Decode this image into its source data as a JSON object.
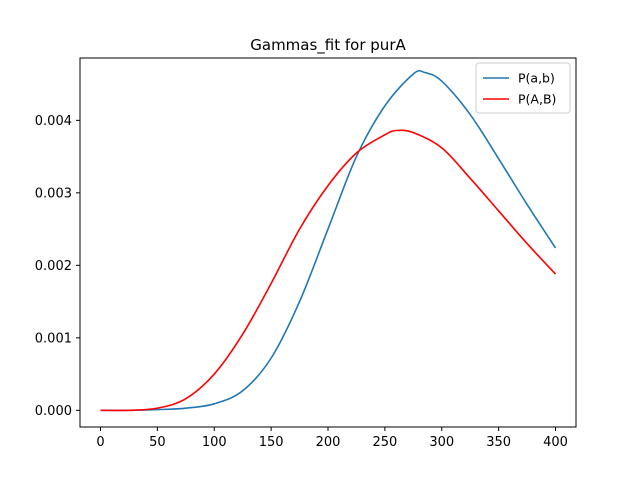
{
  "chart_data": {
    "type": "line",
    "title": "Gammas_fit for purA",
    "xlabel": "",
    "ylabel": "",
    "xlim": [
      -18,
      418
    ],
    "ylim": [
      -0.00023,
      0.00486
    ],
    "xticks": [
      0,
      50,
      100,
      150,
      200,
      250,
      300,
      350,
      400
    ],
    "xtick_labels": [
      "0",
      "50",
      "100",
      "150",
      "200",
      "250",
      "300",
      "350",
      "400"
    ],
    "yticks": [
      0.0,
      0.001,
      0.002,
      0.003,
      0.004
    ],
    "ytick_labels": [
      "0.000",
      "0.001",
      "0.002",
      "0.003",
      "0.004"
    ],
    "grid": false,
    "legend_position": "top-right",
    "series": [
      {
        "name": "P(a,b)",
        "color": "#1f77b4",
        "x": [
          0,
          25,
          50,
          75,
          100,
          125,
          150,
          175,
          200,
          225,
          250,
          275,
          285,
          300,
          325,
          350,
          375,
          400
        ],
        "y": [
          0.0,
          0.0,
          1e-05,
          3e-05,
          9e-05,
          0.00027,
          0.00072,
          0.0015,
          0.0025,
          0.0035,
          0.0042,
          0.00464,
          0.00466,
          0.00454,
          0.00408,
          0.00347,
          0.00284,
          0.00224
        ]
      },
      {
        "name": "P(A,B)",
        "color": "#ff0000",
        "x": [
          0,
          25,
          50,
          75,
          100,
          125,
          150,
          175,
          200,
          225,
          250,
          260,
          275,
          300,
          325,
          350,
          375,
          400
        ],
        "y": [
          0.0,
          0.0,
          3e-05,
          0.00016,
          0.0005,
          0.00105,
          0.00175,
          0.0025,
          0.0031,
          0.00355,
          0.0038,
          0.00386,
          0.00383,
          0.00362,
          0.0032,
          0.00275,
          0.0023,
          0.00188
        ]
      }
    ]
  }
}
